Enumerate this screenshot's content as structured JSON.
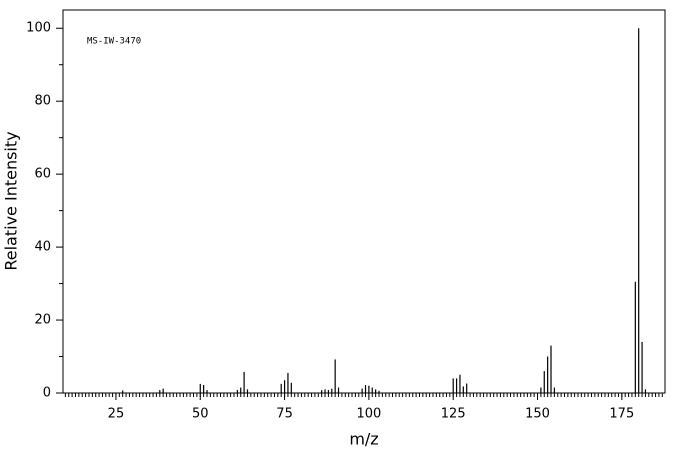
{
  "chart_data": {
    "type": "stem",
    "annotation": "MS-IW-3470",
    "x_label": "m/z",
    "y_label": "Relative Intensity",
    "color": "#000000",
    "x": [
      27,
      38,
      39,
      50,
      51,
      52,
      61,
      62,
      63,
      64,
      74,
      75,
      76,
      77,
      86,
      87,
      88,
      89,
      90,
      91,
      98,
      99,
      100,
      101,
      102,
      103,
      125,
      126,
      127,
      128,
      129,
      151,
      152,
      153,
      154,
      155,
      179,
      180,
      181,
      182
    ],
    "values": [
      0.7,
      0.8,
      1.2,
      2.5,
      2.2,
      0.8,
      0.8,
      1.5,
      5.8,
      1.0,
      2.5,
      3.5,
      5.5,
      2.8,
      0.8,
      1.0,
      0.8,
      1.2,
      9.2,
      1.5,
      1.2,
      2.2,
      2.0,
      1.5,
      1.0,
      0.6,
      4.0,
      4.0,
      5.0,
      1.8,
      2.6,
      1.5,
      6.0,
      10.0,
      13.0,
      1.5,
      30.5,
      100,
      14.0,
      1.0
    ],
    "xlim": [
      9.3,
      187.8
    ],
    "ylim": [
      0,
      105
    ],
    "xticks": [
      25,
      50,
      75,
      100,
      125,
      150,
      175
    ],
    "yticks": [
      0,
      20,
      40,
      60,
      80,
      100
    ]
  }
}
